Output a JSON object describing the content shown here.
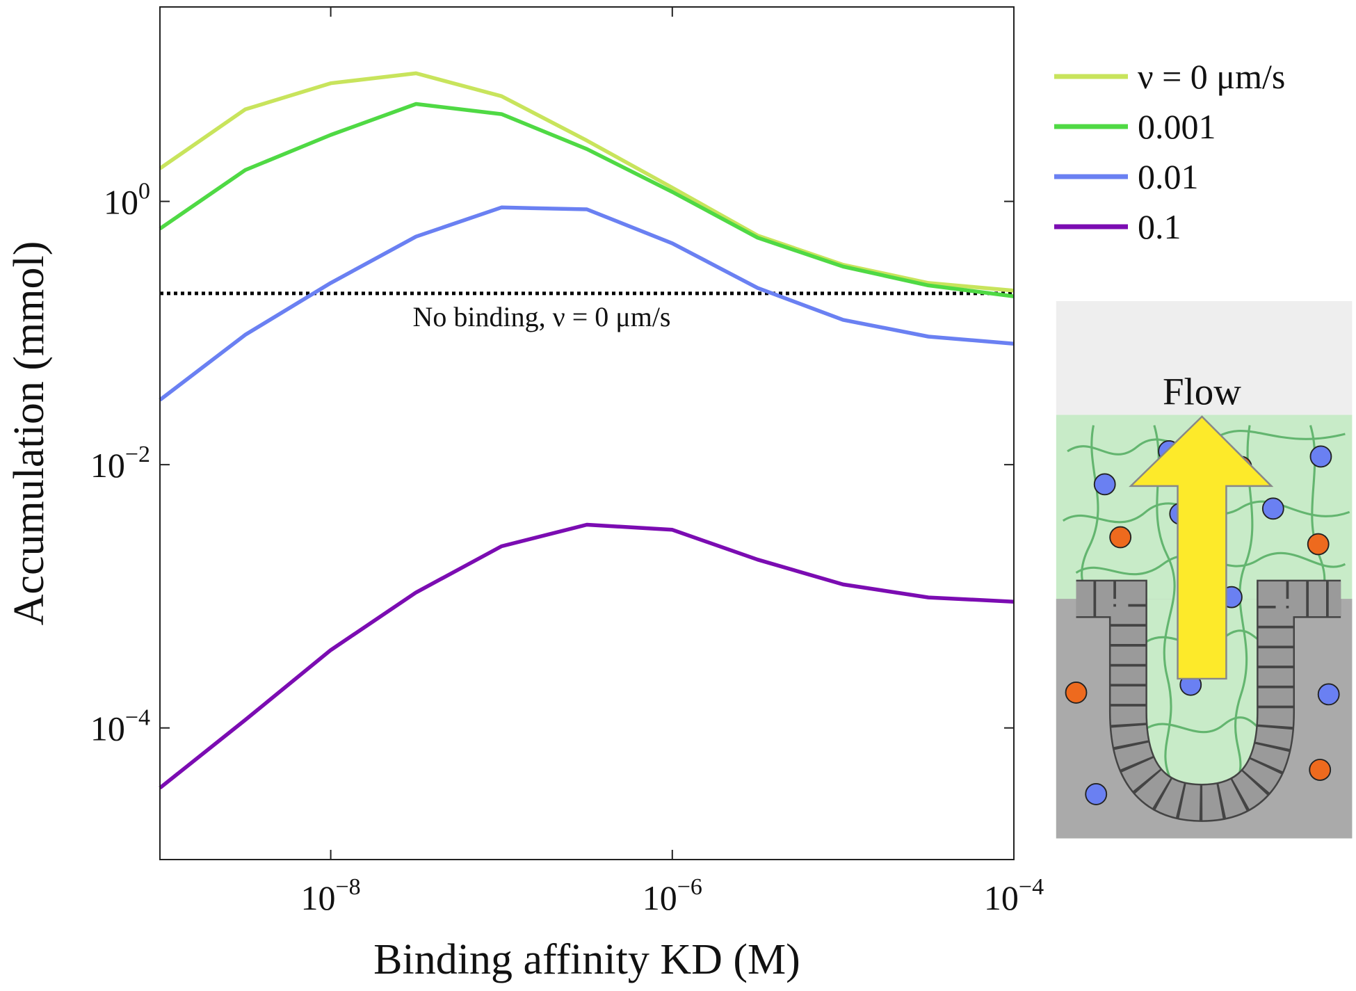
{
  "chart_data": {
    "type": "line",
    "xlabel": "Binding affinity KD (M)",
    "ylabel": "Accumulation (mmol)",
    "xscale": "log",
    "yscale": "log",
    "xlim": [
      1e-09,
      0.0001
    ],
    "ylim": [
      1e-05,
      30
    ],
    "xticks": [
      {
        "value": 1e-08,
        "label": "10",
        "exponent": "−8"
      },
      {
        "value": 1e-06,
        "label": "10",
        "exponent": "−6"
      },
      {
        "value": 0.0001,
        "label": "10",
        "exponent": "−4"
      }
    ],
    "yticks": [
      {
        "value": 0.0001,
        "label": "10",
        "exponent": "−4"
      },
      {
        "value": 0.01,
        "label": "10",
        "exponent": "−2"
      },
      {
        "value": 1,
        "label": "10",
        "exponent": "0"
      }
    ],
    "legend": "outside-right",
    "x": [
      1e-09,
      3.16e-09,
      1e-08,
      3.16e-08,
      1e-07,
      3.16e-07,
      1e-06,
      3.16e-06,
      1e-05,
      3.16e-05,
      0.0001
    ],
    "series": [
      {
        "name": "ν = 0 μm/s",
        "color": "#c8e45c",
        "values": [
          1.78,
          5.0,
          7.9,
          9.4,
          6.3,
          2.9,
          1.27,
          0.55,
          0.33,
          0.24,
          0.21
        ]
      },
      {
        "name": "0.001",
        "color": "#4fd944",
        "values": [
          0.62,
          1.73,
          3.2,
          5.5,
          4.6,
          2.5,
          1.18,
          0.53,
          0.32,
          0.23,
          0.19
        ]
      },
      {
        "name": "0.01",
        "color": "#6a80f2",
        "values": [
          0.031,
          0.097,
          0.24,
          0.54,
          0.9,
          0.87,
          0.48,
          0.22,
          0.126,
          0.094,
          0.083
        ]
      },
      {
        "name": "0.1",
        "color": "#7b0cb2",
        "values": [
          3.5e-05,
          0.000115,
          0.00039,
          0.00107,
          0.0024,
          0.0035,
          0.0032,
          0.0019,
          0.00123,
          0.00098,
          0.00091
        ]
      }
    ],
    "reference_line": {
      "value": 0.2,
      "label": "No binding, ν = 0 μm/s",
      "color": "#000000"
    }
  },
  "illustration": {
    "label": "Flow"
  }
}
